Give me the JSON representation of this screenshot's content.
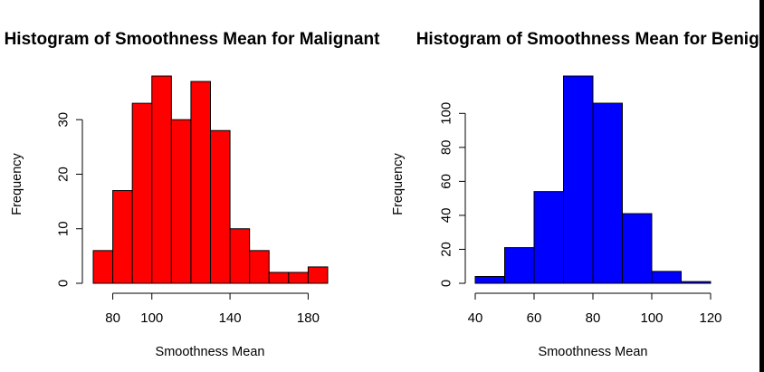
{
  "chart_data": [
    {
      "type": "bar",
      "title": "Histogram of Smoothness Mean for Malignant",
      "xlabel": "Smoothness Mean",
      "ylabel": "Frequency",
      "bin_edges": [
        70,
        80,
        90,
        100,
        110,
        120,
        130,
        140,
        150,
        160,
        170,
        180,
        190
      ],
      "values": [
        6,
        17,
        33,
        38,
        30,
        37,
        28,
        10,
        6,
        2,
        2,
        3
      ],
      "xticks": [
        80,
        100,
        140,
        180
      ],
      "yticks": [
        0,
        10,
        20,
        30
      ],
      "xlim": [
        70,
        190
      ],
      "ylim": [
        0,
        38
      ],
      "bar_color": "#ff0000",
      "grid": false,
      "legend": "none"
    },
    {
      "type": "bar",
      "title": "Histogram of Smoothness Mean for Benign",
      "xlabel": "Smoothness Mean",
      "ylabel": "Frequency",
      "bin_edges": [
        40,
        50,
        60,
        70,
        80,
        90,
        100,
        110,
        120
      ],
      "values": [
        4,
        21,
        54,
        122,
        106,
        41,
        7,
        1
      ],
      "xticks": [
        40,
        60,
        80,
        100,
        120
      ],
      "yticks": [
        0,
        20,
        40,
        60,
        80,
        100
      ],
      "xlim": [
        40,
        120
      ],
      "ylim": [
        0,
        122
      ],
      "bar_color": "#0000ff",
      "grid": false,
      "legend": "none"
    }
  ]
}
